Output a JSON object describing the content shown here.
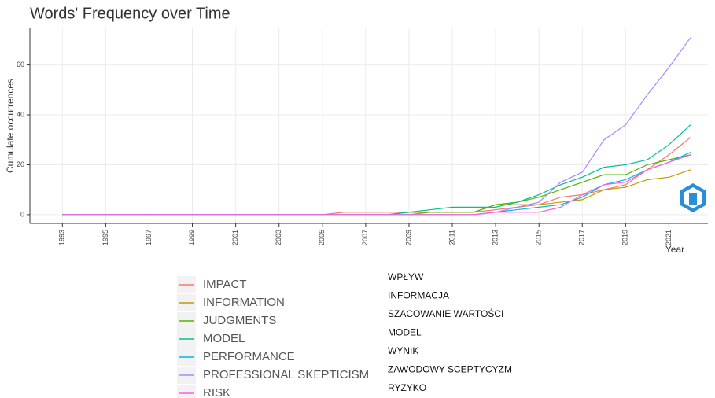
{
  "chart_data": {
    "type": "line",
    "title": "Words' Frequency over Time",
    "x_label": "Year",
    "y_label": "Cumulate occurrences",
    "x": [
      1993,
      1994,
      1995,
      1996,
      1997,
      1998,
      1999,
      2000,
      2001,
      2002,
      2003,
      2004,
      2005,
      2006,
      2007,
      2008,
      2009,
      2010,
      2011,
      2012,
      2013,
      2014,
      2015,
      2016,
      2017,
      2018,
      2019,
      2020,
      2021,
      2022
    ],
    "series": [
      {
        "name": "IMPACT",
        "color": "#F8766D",
        "values": [
          0,
          0,
          0,
          0,
          0,
          0,
          0,
          0,
          0,
          0,
          0,
          0,
          0,
          1,
          1,
          1,
          1,
          1,
          1,
          1,
          2,
          3,
          4,
          7,
          8,
          10,
          12,
          18,
          24,
          31
        ]
      },
      {
        "name": "INFORMATION",
        "color": "#C49A00",
        "values": [
          0,
          0,
          0,
          0,
          0,
          0,
          0,
          0,
          0,
          0,
          0,
          0,
          0,
          0,
          0,
          0,
          0,
          1,
          1,
          1,
          4,
          4,
          4,
          5,
          6,
          10,
          11,
          14,
          15,
          18
        ]
      },
      {
        "name": "JUDGMENTS",
        "color": "#53B400",
        "values": [
          0,
          0,
          0,
          0,
          0,
          0,
          0,
          0,
          0,
          0,
          0,
          0,
          0,
          0,
          0,
          0,
          1,
          1,
          1,
          1,
          4,
          5,
          7,
          10,
          13,
          16,
          16,
          20,
          22,
          24
        ]
      },
      {
        "name": "MODEL",
        "color": "#00C094",
        "values": [
          0,
          0,
          0,
          0,
          0,
          0,
          0,
          0,
          0,
          0,
          0,
          0,
          0,
          0,
          0,
          0,
          1,
          2,
          3,
          3,
          3,
          5,
          8,
          12,
          15,
          19,
          20,
          22,
          28,
          36
        ]
      },
      {
        "name": "PERFORMANCE",
        "color": "#00B6EB",
        "values": [
          0,
          0,
          0,
          0,
          0,
          0,
          0,
          0,
          0,
          0,
          0,
          0,
          0,
          0,
          0,
          0,
          0,
          0,
          0,
          0,
          1,
          2,
          3,
          4,
          7,
          12,
          14,
          18,
          21,
          25
        ]
      },
      {
        "name": "PROFESSIONAL SKEPTICISM",
        "color": "#A58AFF",
        "values": [
          0,
          0,
          0,
          0,
          0,
          0,
          0,
          0,
          0,
          0,
          0,
          0,
          0,
          0,
          0,
          0,
          0,
          0,
          0,
          0,
          1,
          3,
          5,
          13,
          17,
          30,
          36,
          48,
          59,
          71
        ]
      },
      {
        "name": "RISK",
        "color": "#FB61D7",
        "values": [
          0,
          0,
          0,
          0,
          0,
          0,
          0,
          0,
          0,
          0,
          0,
          0,
          0,
          0,
          0,
          0,
          0,
          0,
          0,
          0,
          1,
          1,
          1,
          3,
          8,
          12,
          13,
          18,
          21,
          24
        ]
      }
    ],
    "translations": [
      "WPŁYW",
      "INFORMACJA",
      "SZACOWANIE WARTOŚCI",
      "MODEL",
      "WYNIK",
      "ZAWODOWY SCEPTYCYZM",
      "RYZYKO"
    ],
    "xlim": [
      1991.5,
      2022.8
    ],
    "xticks": [
      1993,
      1995,
      1997,
      1999,
      2001,
      2003,
      2005,
      2007,
      2009,
      2011,
      2013,
      2015,
      2017,
      2019,
      2021
    ],
    "ylim": [
      -3.5,
      75
    ],
    "yticks": [
      0,
      20,
      40,
      60
    ],
    "grid": true
  }
}
